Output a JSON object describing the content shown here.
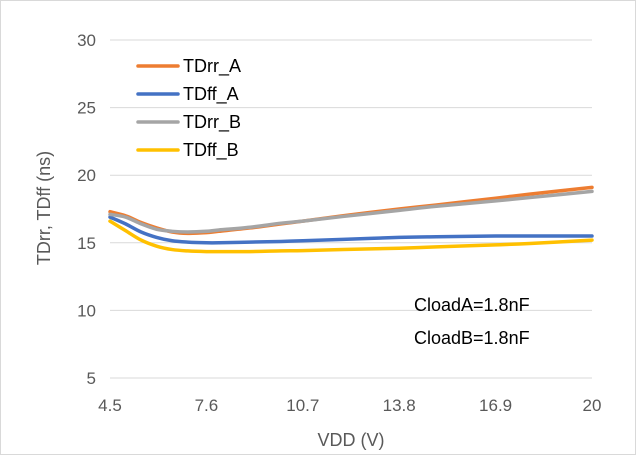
{
  "chart_data": {
    "type": "line",
    "title": "",
    "xlabel": "VDD (V)",
    "ylabel": "TDrr, TDff (ns)",
    "xlim": [
      4.5,
      20
    ],
    "ylim": [
      5,
      30
    ],
    "x_ticks": [
      "4.5",
      "7.6",
      "10.7",
      "13.8",
      "16.9",
      "20"
    ],
    "y_ticks": [
      "5",
      "10",
      "15",
      "20",
      "25",
      "30"
    ],
    "grid": "horizontal",
    "legend_position": "top-left",
    "annotations": [
      "CloadA=1.8nF",
      "CloadB=1.8nF"
    ],
    "series": [
      {
        "name": "TDrr_A",
        "color": "#ED7D31",
        "x": [
          4.5,
          5.0,
          5.5,
          6.0,
          6.5,
          7.0,
          7.6,
          8.0,
          9.0,
          10.0,
          10.7,
          12.0,
          13.8,
          15.0,
          16.9,
          18.0,
          20.0
        ],
        "y": [
          17.3,
          17.0,
          16.5,
          16.1,
          15.8,
          15.7,
          15.75,
          15.85,
          16.1,
          16.4,
          16.6,
          17.0,
          17.5,
          17.8,
          18.3,
          18.6,
          19.1
        ]
      },
      {
        "name": "TDff_A",
        "color": "#4472C4",
        "x": [
          4.5,
          5.0,
          5.5,
          6.0,
          6.5,
          7.0,
          7.6,
          8.0,
          9.0,
          10.0,
          10.7,
          12.0,
          13.8,
          15.0,
          16.9,
          18.0,
          20.0
        ],
        "y": [
          16.9,
          16.4,
          15.8,
          15.4,
          15.15,
          15.05,
          15.0,
          15.0,
          15.05,
          15.1,
          15.15,
          15.25,
          15.4,
          15.45,
          15.5,
          15.5,
          15.5
        ]
      },
      {
        "name": "TDrr_B",
        "color": "#A5A5A5",
        "x": [
          4.5,
          5.0,
          5.5,
          6.0,
          6.5,
          7.0,
          7.6,
          8.0,
          9.0,
          10.0,
          10.7,
          12.0,
          13.8,
          15.0,
          16.9,
          18.0,
          20.0
        ],
        "y": [
          17.1,
          16.9,
          16.4,
          16.0,
          15.85,
          15.8,
          15.85,
          15.95,
          16.15,
          16.45,
          16.6,
          16.95,
          17.4,
          17.7,
          18.1,
          18.35,
          18.8
        ]
      },
      {
        "name": "TDff_B",
        "color": "#FFC000",
        "x": [
          4.5,
          5.0,
          5.5,
          6.0,
          6.5,
          7.0,
          7.6,
          8.0,
          9.0,
          10.0,
          10.7,
          12.0,
          13.8,
          15.0,
          16.9,
          18.0,
          20.0
        ],
        "y": [
          16.6,
          15.9,
          15.2,
          14.75,
          14.5,
          14.4,
          14.35,
          14.35,
          14.35,
          14.4,
          14.42,
          14.5,
          14.6,
          14.7,
          14.85,
          14.95,
          15.2
        ]
      }
    ]
  }
}
